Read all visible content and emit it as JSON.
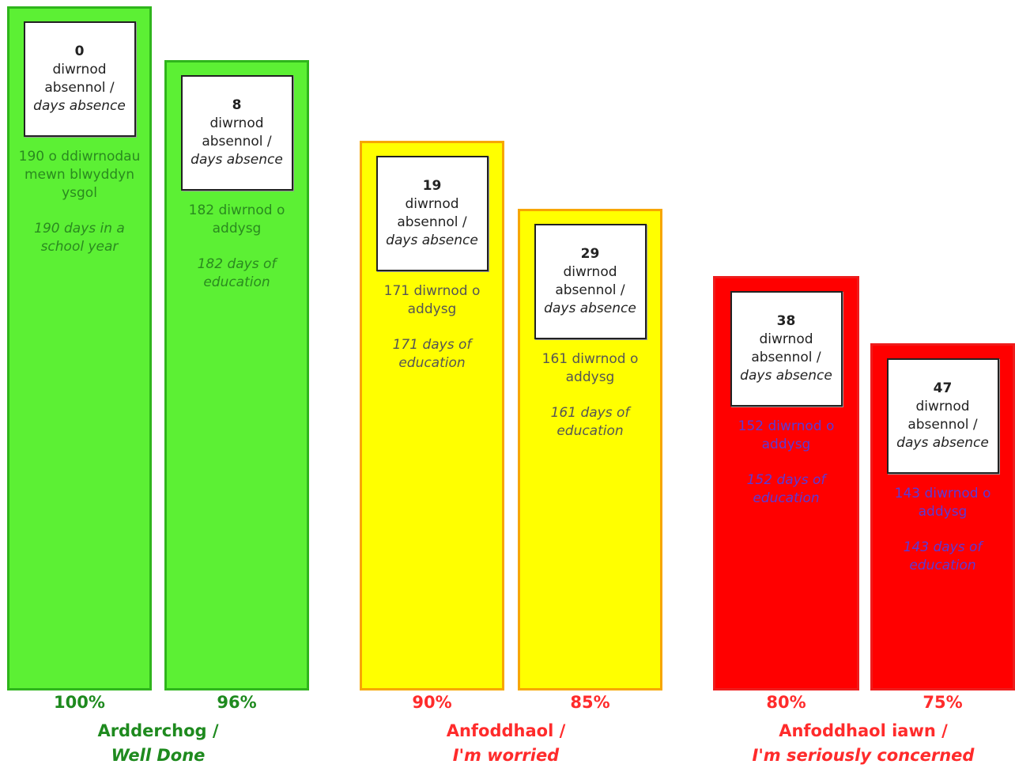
{
  "chart_data": {
    "type": "bar",
    "unit": "%",
    "ylim": [
      0,
      100
    ],
    "bars": [
      {
        "percent": 100,
        "percent_label": "100%",
        "absence_days": "0",
        "absence_cy": "diwrnod absennol /",
        "absence_en": "days absence",
        "education_cy": "190 o ddiwrnodau mewn blwyddyn ysgol",
        "education_en": "190 days in a school year",
        "fill": "#5cf034",
        "border": "#2fb51c",
        "text_color": "#2a8a1f",
        "pct_color": "#1e8a1e"
      },
      {
        "percent": 96,
        "percent_label": "96%",
        "absence_days": "8",
        "absence_cy": "diwrnod absennol /",
        "absence_en": "days absence",
        "education_cy": "182 diwrnod o addysg",
        "education_en": "182 days of education",
        "fill": "#5cf034",
        "border": "#2fb51c",
        "text_color": "#2a8a1f",
        "pct_color": "#1e8a1e"
      },
      {
        "percent": 90,
        "percent_label": "90%",
        "absence_days": "19",
        "absence_cy": "diwrnod absennol /",
        "absence_en": "days absence",
        "education_cy": "171 diwrnod o addysg",
        "education_en": "171 days of education",
        "fill": "#ffff00",
        "border": "#f7a600",
        "text_color": "#555555",
        "pct_color": "#ff2b2b"
      },
      {
        "percent": 85,
        "percent_label": "85%",
        "absence_days": "29",
        "absence_cy": "diwrnod absennol /",
        "absence_en": "days absence",
        "education_cy": "161 diwrnod o addysg",
        "education_en": "161 days of education",
        "fill": "#ffff00",
        "border": "#f7a600",
        "text_color": "#555555",
        "pct_color": "#ff2b2b"
      },
      {
        "percent": 80,
        "percent_label": "80%",
        "absence_days": "38",
        "absence_cy": "diwrnod absennol /",
        "absence_en": "days absence",
        "education_cy": "152 diwrnod o addysg",
        "education_en": "152 days of education",
        "fill": "#ff0000",
        "border": "#ee1c1c",
        "text_color": "#5a3ad8",
        "pct_color": "#ff2b2b"
      },
      {
        "percent": 75,
        "percent_label": "75%",
        "absence_days": "47",
        "absence_cy": "diwrnod absennol /",
        "absence_en": "days absence",
        "education_cy": "143 diwrnod o addysg",
        "education_en": "143 days of education",
        "fill": "#ff0000",
        "border": "#ee1c1c",
        "text_color": "#5a3ad8",
        "pct_color": "#ff2b2b"
      }
    ],
    "categories": [
      {
        "cy": "Ardderchog /",
        "en": "Well Done",
        "color": "#1e8a1e"
      },
      {
        "cy": "Anfoddhaol /",
        "en": "I'm worried",
        "color": "#ff2b2b"
      },
      {
        "cy": "Anfoddhaol iawn /",
        "en": "I'm seriously concerned",
        "color": "#ff2b2b"
      }
    ]
  }
}
